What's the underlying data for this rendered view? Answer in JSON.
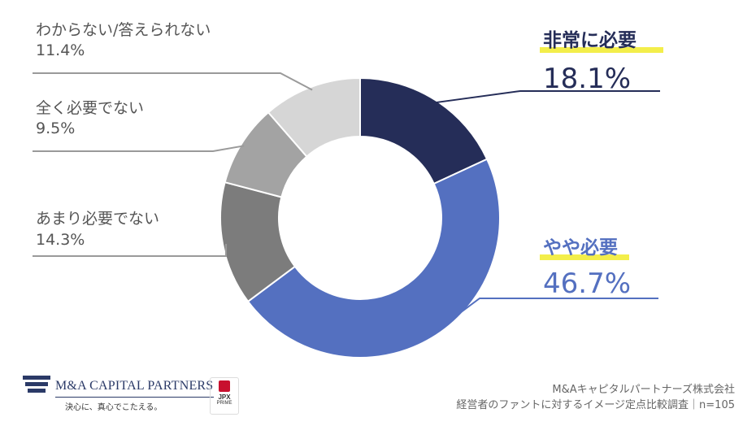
{
  "chart_data": {
    "type": "pie",
    "donut": true,
    "slices": [
      {
        "label": "非常に必要",
        "value": 18.1,
        "value_label": "18.1%",
        "color": "#252d58"
      },
      {
        "label": "やや必要",
        "value": 46.7,
        "value_label": "46.7%",
        "color": "#5470c0"
      },
      {
        "label": "あまり必要でない",
        "value": 14.3,
        "value_label": "14.3%",
        "color": "#7c7c7c"
      },
      {
        "label": "全く必要でない",
        "value": 9.5,
        "value_label": "9.5%",
        "color": "#a3a3a3"
      },
      {
        "label": "わからない/答えられない",
        "value": 11.4,
        "value_label": "11.4%",
        "color": "#d6d6d6"
      }
    ],
    "highlight_color": "#f3ee4a"
  },
  "footer": {
    "brand_name": "M&A CAPITAL PARTNERS",
    "brand_tagline": "決心に、真心でこたえる。",
    "badge_top": "JPX",
    "badge_bottom": "PRIME",
    "source_line1": "M&Aキャピタルパートナーズ株式会社",
    "source_line2": "経営者のファントに対するイメージ定点比較調査｜n=105"
  }
}
